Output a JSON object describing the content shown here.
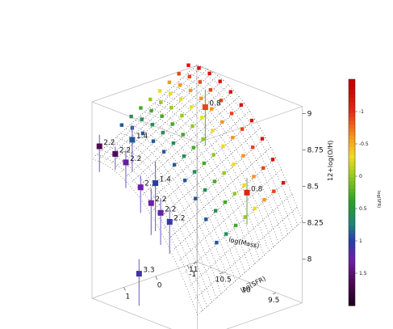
{
  "chart_data": {
    "type": "scatter",
    "x_axis": {
      "label": "log(Mass)",
      "ticks": [
        "9.5",
        "10",
        "10.5",
        "11"
      ]
    },
    "y_axis": {
      "label": "log(SFR)",
      "ticks": [
        "-1",
        "0",
        "1"
      ]
    },
    "z_axis": {
      "label": "12+log(O/H)",
      "ticks": [
        "8",
        "8.25",
        "8.5",
        "8.75",
        "9"
      ]
    },
    "colorbar": {
      "label": "log(SFR)",
      "ticks": [
        "-1",
        "-0.5",
        "0",
        "0.5",
        "1",
        "1.5"
      ],
      "range": [
        2,
        -1.5
      ]
    },
    "surface_grid": true,
    "labeled_points": [
      {
        "label": "0.8",
        "mass": 10.6,
        "sfr": -0.9,
        "oh": 8.85,
        "err": 0.12
      },
      {
        "label": "0.8",
        "mass": 9.9,
        "sfr": -1.05,
        "oh": 8.35,
        "err": 0.1
      },
      {
        "label": "1.4",
        "mass": 10.9,
        "sfr": 0.9,
        "oh": 8.72,
        "err": 0.1
      },
      {
        "label": "2.2",
        "mass": 10.8,
        "sfr": 1.6,
        "oh": 8.69,
        "err": 0.05
      },
      {
        "label": "2.2",
        "mass": 11.1,
        "sfr": 1.6,
        "oh": 8.7,
        "err": 0.08
      },
      {
        "label": "2.2",
        "mass": 10.75,
        "sfr": 1.35,
        "oh": 8.62,
        "err": 0.08
      },
      {
        "label": "2.2",
        "mass": 10.5,
        "sfr": 1.3,
        "oh": 8.48,
        "err": 0.08
      },
      {
        "label": "2.2",
        "mass": 10.3,
        "sfr": 1.3,
        "oh": 8.4,
        "err": 0.1
      },
      {
        "label": "2.2",
        "mass": 10.15,
        "sfr": 1.25,
        "oh": 8.35,
        "err": 0.1
      },
      {
        "label": "1.4",
        "mass": 10.4,
        "sfr": 1.0,
        "oh": 8.5,
        "err": 0.15
      },
      {
        "label": "2.2",
        "mass": 10.1,
        "sfr": 1.05,
        "oh": 8.28,
        "err": 0.1
      },
      {
        "label": "3.3",
        "mass": 10.65,
        "sfr": 1.1,
        "oh": 7.85,
        "err": 0.1
      }
    ],
    "bins": {
      "mass": [
        9.3,
        9.5,
        9.7,
        9.9,
        10.1,
        10.3,
        10.5,
        10.7,
        10.9,
        11.1
      ],
      "sfr": [
        -1.2,
        -0.9,
        -0.6,
        -0.3,
        0.0,
        0.3,
        0.6,
        0.9
      ],
      "note_fn": "oh = 8.9 - 0.22*(m-10.9)^2 - 0.12*sfr"
    }
  },
  "colors": {
    "surface": "#2a2a2a",
    "box": "#b8b8b8",
    "errorbar_high": "#7a68c8",
    "errorbar_green": "#6ab04c"
  }
}
